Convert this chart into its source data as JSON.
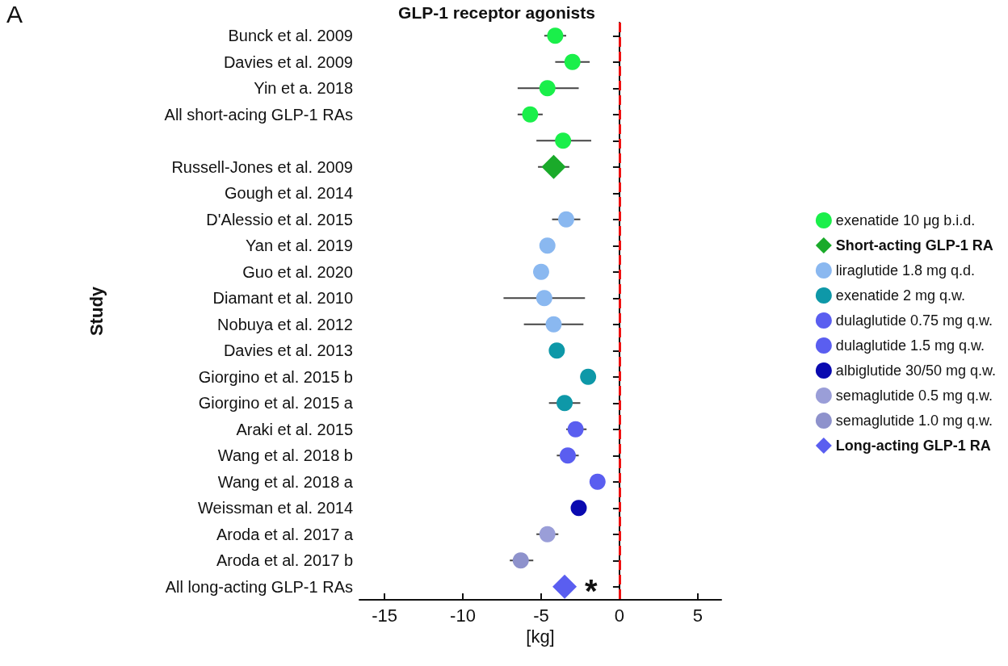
{
  "chart_data": {
    "type": "scatter",
    "title": "GLP-1 receptor agonists",
    "xlabel": "[kg]",
    "ylabel": "Study",
    "orientation": "horizontal",
    "categories": [
      "Bunck et al. 2009",
      "Davies et al. 2009",
      "Yin et a. 2018",
      "All short-acing GLP-1 RAs",
      null,
      "Russell-Jones et al. 2009",
      "Gough et al. 2014",
      "D'Alessio et al. 2015",
      "Yan et al. 2019",
      "Guo et al. 2020",
      "Diamant et al. 2010",
      "Nobuya et al. 2012",
      "Davies et al. 2013",
      "Giorgino et al. 2015 b",
      "Giorgino et al. 2015 a",
      "Araki et al. 2015",
      "Wang et al. 2018 b",
      "Wang et al. 2018 a",
      "Weissman et al. 2014",
      "Aroda et al. 2017 a",
      "Aroda et al. 2017 b",
      "All long-acting GLP-1 RAs"
    ],
    "series": [
      {
        "name": "exenatide 10 μg b.i.d.",
        "color": "#1aef4a",
        "marker": "circle",
        "values": [
          -4.1,
          -3.0,
          -4.6,
          -5.7,
          -3.6,
          null,
          null,
          null,
          null,
          null,
          null,
          null,
          null,
          null,
          null,
          null,
          null,
          null,
          null,
          null,
          null,
          null
        ],
        "errors": [
          [
            -4.8,
            -3.4
          ],
          [
            -4.1,
            -1.9
          ],
          [
            -6.5,
            -2.6
          ],
          [
            -6.5,
            -4.9
          ],
          [
            -5.3,
            -1.8
          ],
          null,
          null,
          null,
          null,
          null,
          null,
          null,
          null,
          null,
          null,
          null,
          null,
          null,
          null,
          null,
          null,
          null
        ]
      },
      {
        "name": "Short-acting GLP-1 RA",
        "color": "#1aaa2a",
        "marker": "diamond",
        "values": [
          null,
          null,
          null,
          null,
          null,
          -4.2,
          null,
          null,
          null,
          null,
          null,
          null,
          null,
          null,
          null,
          null,
          null,
          null,
          null,
          null,
          null,
          null
        ],
        "errors": [
          null,
          null,
          null,
          null,
          null,
          [
            -5.2,
            -3.2
          ],
          null,
          null,
          null,
          null,
          null,
          null,
          null,
          null,
          null,
          null,
          null,
          null,
          null,
          null,
          null,
          null
        ]
      },
      {
        "name": "liraglutide 1.8 mg q.d.",
        "color": "#8ab8f0",
        "marker": "circle",
        "values": [
          null,
          null,
          null,
          null,
          null,
          null,
          null,
          -3.4,
          -4.6,
          -5.0,
          -4.8,
          -4.2,
          null,
          null,
          null,
          null,
          null,
          null,
          null,
          null,
          null,
          null
        ],
        "errors": [
          null,
          null,
          null,
          null,
          null,
          null,
          null,
          [
            -4.3,
            -2.5
          ],
          null,
          null,
          [
            -7.4,
            -2.2
          ],
          [
            -6.1,
            -2.3
          ],
          null,
          null,
          null,
          null,
          null,
          null,
          null,
          null,
          null,
          null
        ]
      },
      {
        "name": "exenatide 2 mg q.w.",
        "color": "#0e98a8",
        "marker": "circle",
        "values": [
          null,
          null,
          null,
          null,
          null,
          null,
          null,
          null,
          null,
          null,
          null,
          null,
          -4.0,
          -2.0,
          -3.5,
          null,
          null,
          null,
          null,
          null,
          null,
          null
        ],
        "errors": [
          null,
          null,
          null,
          null,
          null,
          null,
          null,
          null,
          null,
          null,
          null,
          null,
          null,
          null,
          [
            -4.5,
            -2.5
          ],
          null,
          null,
          null,
          null,
          null,
          null,
          null
        ]
      },
      {
        "name": "dulaglutide 0.75 mg q.w.",
        "color": "#5a5ef0",
        "marker": "circle",
        "values": [
          null,
          null,
          null,
          null,
          null,
          null,
          null,
          null,
          null,
          null,
          null,
          null,
          null,
          null,
          null,
          -2.8,
          null,
          -1.4,
          null,
          null,
          null,
          null
        ],
        "errors": [
          null,
          null,
          null,
          null,
          null,
          null,
          null,
          null,
          null,
          null,
          null,
          null,
          null,
          null,
          null,
          [
            -3.4,
            -2.1
          ],
          null,
          null,
          null,
          null,
          null,
          null
        ]
      },
      {
        "name": "dulaglutide 1.5 mg q.w.",
        "color": "#5a5ef0",
        "marker": "circle",
        "values": [
          null,
          null,
          null,
          null,
          null,
          null,
          null,
          null,
          null,
          null,
          null,
          null,
          null,
          null,
          null,
          null,
          -3.3,
          null,
          null,
          null,
          null,
          null
        ],
        "errors": [
          null,
          null,
          null,
          null,
          null,
          null,
          null,
          null,
          null,
          null,
          null,
          null,
          null,
          null,
          null,
          null,
          [
            -4.0,
            -2.6
          ],
          null,
          null,
          null,
          null,
          null
        ]
      },
      {
        "name": "albiglutide 30/50 mg q.w.",
        "color": "#0a0ab0",
        "marker": "circle",
        "values": [
          null,
          null,
          null,
          null,
          null,
          null,
          null,
          null,
          null,
          null,
          null,
          null,
          null,
          null,
          null,
          null,
          null,
          null,
          -2.6,
          null,
          null,
          null
        ]
      },
      {
        "name": "semaglutide 0.5 mg q.w.",
        "color": "#9a9ed8",
        "marker": "circle",
        "values": [
          null,
          null,
          null,
          null,
          null,
          null,
          null,
          null,
          null,
          null,
          null,
          null,
          null,
          null,
          null,
          null,
          null,
          null,
          null,
          -4.6,
          null,
          null
        ],
        "errors": [
          null,
          null,
          null,
          null,
          null,
          null,
          null,
          null,
          null,
          null,
          null,
          null,
          null,
          null,
          null,
          null,
          null,
          null,
          null,
          [
            -5.3,
            -3.9
          ],
          null,
          null
        ]
      },
      {
        "name": "semaglutide 1.0 mg q.w.",
        "color": "#8e92cc",
        "marker": "circle",
        "values": [
          null,
          null,
          null,
          null,
          null,
          null,
          null,
          null,
          null,
          null,
          null,
          null,
          null,
          null,
          null,
          null,
          null,
          null,
          null,
          null,
          -6.3,
          null
        ],
        "errors": [
          null,
          null,
          null,
          null,
          null,
          null,
          null,
          null,
          null,
          null,
          null,
          null,
          null,
          null,
          null,
          null,
          null,
          null,
          null,
          null,
          [
            -7.0,
            -5.5
          ],
          null
        ]
      },
      {
        "name": "Long-acting GLP-1 RA",
        "color": "#5a5ef0",
        "marker": "diamond",
        "values": [
          null,
          null,
          null,
          null,
          null,
          null,
          null,
          null,
          null,
          null,
          null,
          null,
          null,
          null,
          null,
          null,
          null,
          null,
          null,
          null,
          null,
          -3.5
        ]
      }
    ],
    "xlim": [
      -16.6,
      6.5
    ],
    "xticks": [
      -15,
      -10,
      -5,
      0,
      5
    ],
    "ref_lines": [
      {
        "axis": "x",
        "value": 0,
        "color": "#ee1111",
        "line_style": "dashed"
      }
    ],
    "annotations": [
      "A",
      "*"
    ],
    "legend": "right",
    "grid": false
  }
}
